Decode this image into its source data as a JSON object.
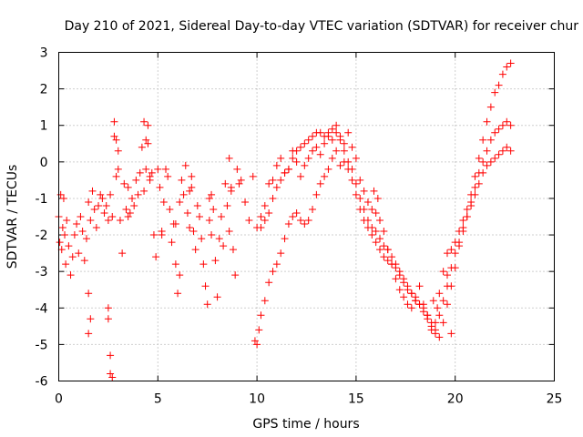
{
  "chart_data": {
    "type": "scatter",
    "title": "Day 210 of 2021, Sidereal Day-to-day VTEC variation (SDTVAR) for receiver chur",
    "xlabel": "GPS time / hours",
    "ylabel": "SDTVAR / TECUs",
    "xlim": [
      0,
      25
    ],
    "ylim": [
      -6,
      3
    ],
    "xticks": [
      0,
      5,
      10,
      15,
      20,
      25
    ],
    "yticks": [
      -6,
      -5,
      -4,
      -3,
      -2,
      -1,
      0,
      1,
      2,
      3
    ],
    "grid": true,
    "marker": "+",
    "series": [
      {
        "name": "SDTVAR",
        "color": "#ff0000",
        "x": [
          0.0,
          0.05,
          0.1,
          0.15,
          0.2,
          0.25,
          0.3,
          0.35,
          0.4,
          0.5,
          0.6,
          0.7,
          0.8,
          0.9,
          1.0,
          1.1,
          1.2,
          1.3,
          1.4,
          1.5,
          1.6,
          1.7,
          1.8,
          1.9,
          2.0,
          2.1,
          2.2,
          2.3,
          2.4,
          2.5,
          2.6,
          2.7,
          2.8,
          2.9,
          3.0,
          3.1,
          3.2,
          3.3,
          3.4,
          3.5,
          3.6,
          3.7,
          3.8,
          3.9,
          4.0,
          4.1,
          4.2,
          4.3,
          4.4,
          4.5,
          4.6,
          4.7,
          4.8,
          4.9,
          5.0,
          5.1,
          5.2,
          5.3,
          5.4,
          5.5,
          5.6,
          5.7,
          5.8,
          5.9,
          6.0,
          6.1,
          6.2,
          6.3,
          6.4,
          6.5,
          6.6,
          6.7,
          6.8,
          6.9,
          7.0,
          7.1,
          7.2,
          7.3,
          7.4,
          7.5,
          7.6,
          7.7,
          7.8,
          7.9,
          8.0,
          8.1,
          8.2,
          8.3,
          8.4,
          8.5,
          8.6,
          8.7,
          8.8,
          8.9,
          9.0,
          9.2,
          9.4,
          9.6,
          9.8,
          10.0,
          10.2,
          10.4,
          10.6,
          10.8,
          11.0,
          11.2,
          11.4,
          11.6,
          11.8,
          12.0,
          12.2,
          12.4,
          12.6,
          12.8,
          13.0,
          13.2,
          13.4,
          13.6,
          13.8,
          14.0,
          14.2,
          14.4,
          14.6,
          14.8,
          15.0,
          15.2,
          15.4,
          15.6,
          15.8,
          16.0,
          16.2,
          16.4,
          16.6,
          16.8,
          17.0,
          17.2,
          17.4,
          17.6,
          17.8,
          18.0,
          18.2,
          18.4,
          18.6,
          18.8,
          19.0,
          19.2,
          19.4,
          19.6,
          19.8,
          20.0,
          20.2,
          20.4,
          20.6,
          20.8,
          21.0,
          21.2,
          21.4,
          21.6,
          21.8,
          22.0,
          22.2,
          22.4,
          22.6,
          22.8,
          9.9,
          10.0,
          10.1,
          10.2,
          10.4,
          10.6,
          10.8,
          11.0,
          11.2,
          11.4,
          11.6,
          11.8,
          12.0,
          12.2,
          12.4,
          12.6,
          12.8,
          13.0,
          13.2,
          13.4,
          13.6,
          13.8,
          14.0,
          14.2,
          14.4,
          14.6,
          14.8,
          15.0,
          15.2,
          15.4,
          15.6,
          15.8,
          16.0,
          16.2,
          16.4,
          16.6,
          16.8,
          17.0,
          17.2,
          17.4,
          17.6,
          17.8,
          18.0,
          18.2,
          18.4,
          18.6,
          18.8,
          19.0,
          19.2,
          19.4,
          19.6,
          19.8,
          20.0,
          20.2,
          20.4,
          20.6,
          20.8,
          21.0,
          21.2,
          21.4,
          21.6,
          21.8,
          22.0,
          22.2,
          22.4,
          22.6,
          22.8,
          10.2,
          10.4,
          10.6,
          10.8,
          11.0,
          11.2,
          11.4,
          11.6,
          11.8,
          12.0,
          12.2,
          12.4,
          12.6,
          12.8,
          13.0,
          13.2,
          13.4,
          13.6,
          13.8,
          14.0,
          14.2,
          14.4,
          14.6,
          14.8,
          15.0,
          15.2,
          15.4,
          15.6,
          15.8,
          16.0,
          16.2,
          16.4,
          16.6,
          16.8,
          17.0,
          17.2,
          17.4,
          17.6,
          17.8,
          18.0,
          18.2,
          18.4,
          18.6,
          18.8,
          19.0,
          19.2,
          19.4,
          19.6,
          19.8,
          20.0,
          20.2,
          20.4,
          20.6,
          20.8,
          21.0,
          21.2,
          21.4,
          21.6,
          21.8,
          22.0,
          22.2,
          22.4,
          22.6,
          22.8,
          1.5,
          1.5,
          1.6,
          2.5,
          2.5,
          2.6,
          2.6,
          2.7,
          2.8,
          2.9,
          3.0,
          3.5,
          4.3,
          4.4,
          4.5,
          4.6,
          5.2,
          5.9,
          6.1,
          6.6,
          6.7,
          7.6,
          7.7,
          8.6,
          8.7,
          9.1,
          15.9,
          16.1,
          18.9,
          19.1,
          19.6,
          19.8
        ],
        "y": [
          -1.5,
          -2.2,
          -0.9,
          -2.4,
          -1.8,
          -1.0,
          -2.0,
          -2.8,
          -1.6,
          -2.3,
          -3.1,
          -2.6,
          -2.0,
          -1.7,
          -2.5,
          -1.5,
          -1.9,
          -2.7,
          -2.1,
          -1.1,
          -1.6,
          -0.8,
          -1.3,
          -1.8,
          -1.2,
          -0.9,
          -1.0,
          -1.4,
          -1.2,
          -1.6,
          -0.9,
          -1.5,
          0.7,
          -0.4,
          -0.2,
          -1.6,
          -2.5,
          -0.6,
          -1.3,
          -0.7,
          -1.4,
          -1.0,
          -1.2,
          -0.5,
          -0.9,
          -0.3,
          0.4,
          1.1,
          0.6,
          1.0,
          -0.5,
          -0.3,
          -2.0,
          -2.6,
          -0.2,
          -0.7,
          -1.9,
          -1.1,
          -0.2,
          -0.4,
          -1.3,
          -2.2,
          -1.7,
          -2.8,
          -3.6,
          -1.1,
          -0.5,
          -0.9,
          -0.1,
          -1.4,
          -1.8,
          -0.7,
          -1.9,
          -2.4,
          -1.2,
          -1.5,
          -2.1,
          -2.8,
          -3.4,
          -3.9,
          -1.0,
          -2.0,
          -1.3,
          -2.7,
          -3.7,
          -2.1,
          -1.5,
          -2.3,
          -0.6,
          -1.2,
          -1.9,
          -0.8,
          -2.4,
          -3.1,
          -0.2,
          -0.5,
          -1.1,
          -1.6,
          -0.4,
          -1.8,
          -1.5,
          -1.2,
          -0.6,
          -0.5,
          -0.1,
          0.1,
          -0.3,
          -0.2,
          0.3,
          0.0,
          -0.4,
          -0.1,
          0.1,
          0.3,
          0.4,
          0.2,
          0.5,
          0.7,
          0.6,
          1.0,
          0.7,
          0.5,
          0.8,
          0.4,
          0.1,
          -0.5,
          -0.8,
          -1.1,
          -1.3,
          -1.4,
          -1.6,
          -1.9,
          -2.4,
          -2.8,
          -3.2,
          -3.5,
          -3.7,
          -3.9,
          -4.0,
          -3.8,
          -3.4,
          -3.9,
          -4.3,
          -4.6,
          -4.4,
          -3.6,
          -3.0,
          -2.5,
          -2.4,
          -2.2,
          -1.9,
          -1.6,
          -1.3,
          -0.9,
          -0.4,
          0.1,
          0.6,
          1.1,
          1.5,
          1.9,
          2.1,
          2.4,
          2.6,
          2.7,
          -4.9,
          -5.0,
          -4.6,
          -4.2,
          -3.8,
          -3.3,
          -3.0,
          -2.8,
          -2.5,
          -2.1,
          -1.7,
          -1.5,
          -1.4,
          -1.6,
          -1.7,
          -1.6,
          -1.3,
          -0.9,
          -0.6,
          -0.4,
          -0.2,
          0.1,
          0.3,
          -0.1,
          0.0,
          -0.2,
          -0.5,
          -0.9,
          -1.3,
          -1.6,
          -1.8,
          -2.0,
          -2.2,
          -2.4,
          -2.6,
          -2.7,
          -2.8,
          -2.9,
          -3.1,
          -3.3,
          -3.5,
          -3.6,
          -3.8,
          -3.9,
          -4.1,
          -4.2,
          -4.4,
          -4.6,
          -4.2,
          -3.8,
          -3.4,
          -2.9,
          -2.5,
          -2.2,
          -1.8,
          -1.5,
          -1.2,
          -0.9,
          -0.6,
          -0.3,
          -0.1,
          0.0,
          0.1,
          0.2,
          0.3,
          0.4,
          0.3,
          -1.8,
          -1.6,
          -1.4,
          -1.0,
          -0.7,
          -0.5,
          -0.3,
          -0.2,
          0.1,
          0.3,
          0.4,
          0.5,
          0.6,
          0.7,
          0.8,
          0.8,
          0.7,
          0.8,
          0.9,
          0.8,
          0.6,
          0.3,
          0.0,
          -0.2,
          -0.6,
          -1.0,
          -1.3,
          -1.6,
          -1.8,
          -1.9,
          -2.1,
          -2.3,
          -2.4,
          -2.6,
          -2.8,
          -3.0,
          -3.2,
          -3.4,
          -3.6,
          -3.7,
          -3.9,
          -4.0,
          -4.2,
          -4.5,
          -4.7,
          -4.8,
          -4.4,
          -3.9,
          -3.4,
          -2.9,
          -2.3,
          -1.9,
          -1.5,
          -1.1,
          -0.7,
          -0.3,
          0.0,
          0.3,
          0.6,
          0.8,
          0.9,
          1.0,
          1.1,
          1.0,
          -3.6,
          -4.7,
          -4.3,
          -4.0,
          -4.3,
          -5.3,
          -5.8,
          -5.9,
          1.1,
          0.6,
          0.3,
          -1.5,
          -0.8,
          -0.2,
          0.5,
          -0.4,
          -2.0,
          -1.7,
          -3.1,
          -0.8,
          -0.4,
          -1.6,
          -0.9,
          0.1,
          -0.7,
          -0.6,
          -0.8,
          -1.0,
          -3.8,
          -4.0,
          -3.1,
          -4.7
        ]
      }
    ]
  }
}
